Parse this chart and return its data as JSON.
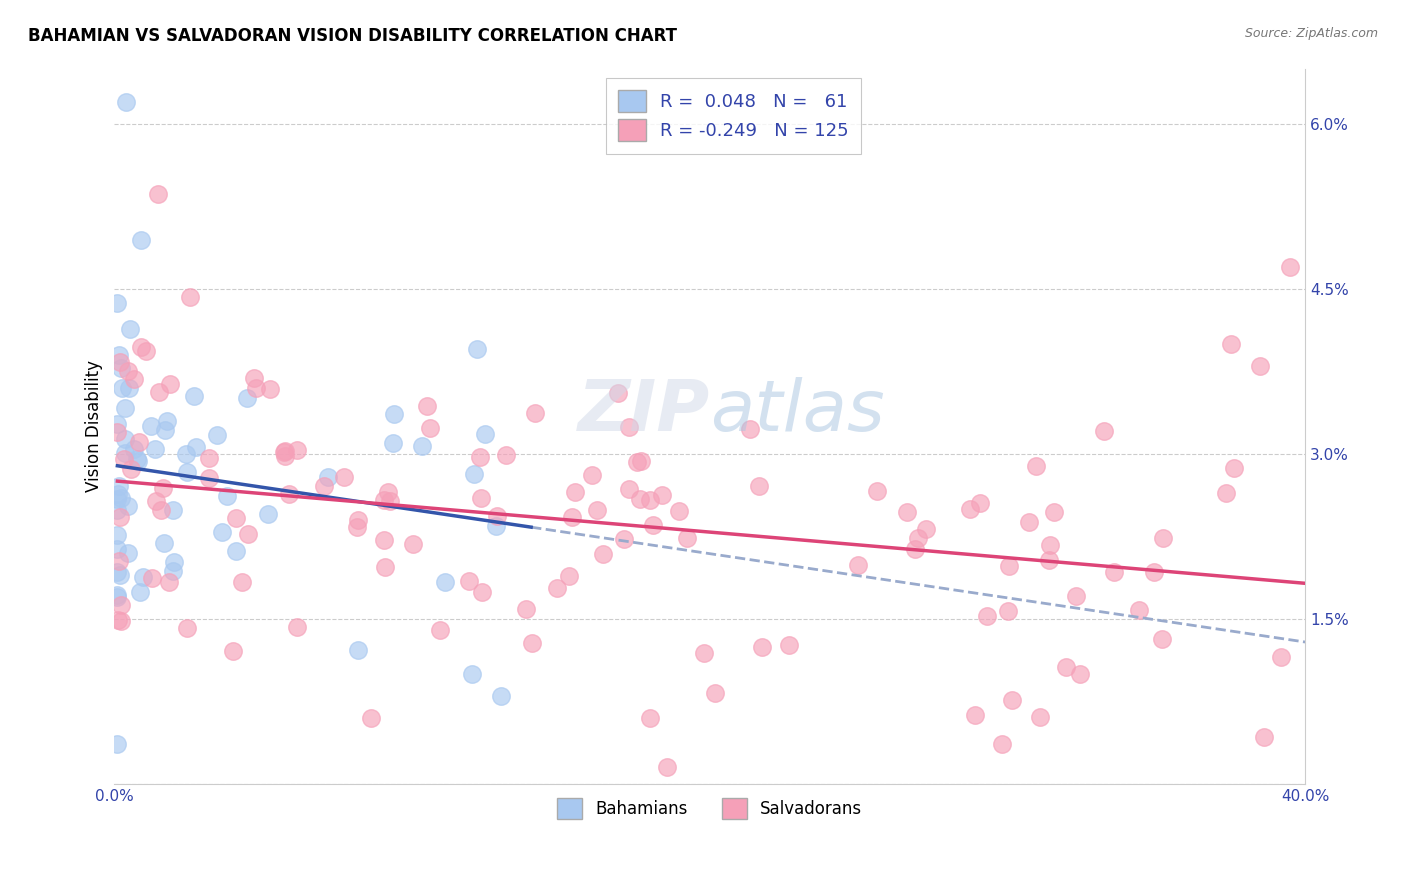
{
  "title": "BAHAMIAN VS SALVADORAN VISION DISABILITY CORRELATION CHART",
  "source": "Source: ZipAtlas.com",
  "ylabel": "Vision Disability",
  "xlim": [
    0.0,
    0.4
  ],
  "ylim": [
    0.0,
    0.065
  ],
  "bahamian_color": "#a8c8f0",
  "salvadoran_color": "#f5a0b8",
  "trend_bahamian_color": "#3355aa",
  "trend_salvadoran_color": "#dd4477",
  "trend_dashed_color": "#99aacc",
  "R_bahamian": 0.048,
  "N_bahamian": 61,
  "R_salvadoran": -0.249,
  "N_salvadoran": 125,
  "watermark": "ZIPatlas",
  "legend_label_1": "R =  0.048   N =   61",
  "legend_label_2": "R = -0.249   N = 125",
  "bottom_legend_1": "Bahamians",
  "bottom_legend_2": "Salvadorans"
}
